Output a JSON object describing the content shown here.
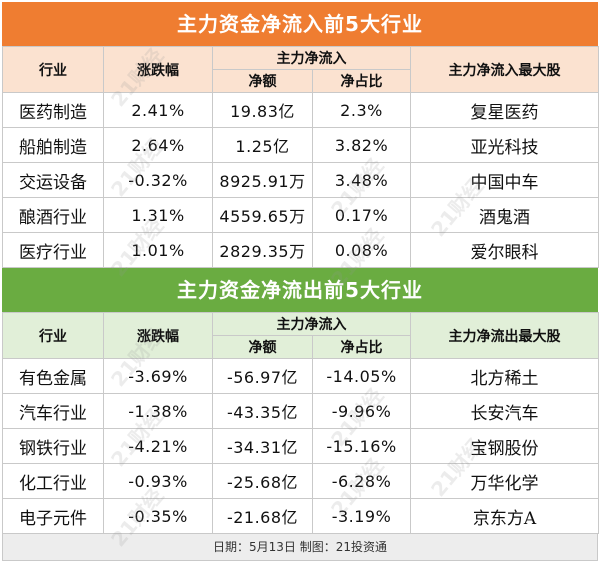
{
  "inflow": {
    "title": "主力资金净流入前5大行业",
    "headers": {
      "industry": "行业",
      "change": "涨跌幅",
      "main_net": "主力净流入",
      "net_amount": "净额",
      "net_ratio": "净占比",
      "top_stock": "主力净流入最大股"
    },
    "rows": [
      {
        "industry": "医药制造",
        "change": "2.41%",
        "amount": "19.83亿",
        "ratio": "2.3%",
        "stock": "复星医药"
      },
      {
        "industry": "船舶制造",
        "change": "2.64%",
        "amount": "1.25亿",
        "ratio": "3.82%",
        "stock": "亚光科技"
      },
      {
        "industry": "交运设备",
        "change": "-0.32%",
        "amount": "8925.91万",
        "ratio": "3.48%",
        "stock": "中国中车"
      },
      {
        "industry": "酿酒行业",
        "change": "1.31%",
        "amount": "4559.65万",
        "ratio": "0.17%",
        "stock": "酒鬼酒"
      },
      {
        "industry": "医疗行业",
        "change": "1.01%",
        "amount": "2829.35万",
        "ratio": "0.08%",
        "stock": "爱尔眼科"
      }
    ]
  },
  "outflow": {
    "title": "主力资金净流出前5大行业",
    "headers": {
      "industry": "行业",
      "change": "涨跌幅",
      "main_net": "主力净流入",
      "net_amount": "净额",
      "net_ratio": "净占比",
      "top_stock": "主力净流出最大股"
    },
    "rows": [
      {
        "industry": "有色金属",
        "change": "-3.69%",
        "amount": "-56.97亿",
        "ratio": "-14.05%",
        "stock": "北方稀土"
      },
      {
        "industry": "汽车行业",
        "change": "-1.38%",
        "amount": "-43.35亿",
        "ratio": "-9.96%",
        "stock": "长安汽车"
      },
      {
        "industry": "钢铁行业",
        "change": "-4.21%",
        "amount": "-34.31亿",
        "ratio": "-15.16%",
        "stock": "宝钢股份"
      },
      {
        "industry": "化工行业",
        "change": "-0.93%",
        "amount": "-25.68亿",
        "ratio": "-6.28%",
        "stock": "万华化学"
      },
      {
        "industry": "电子元件",
        "change": "-0.35%",
        "amount": "-21.68亿",
        "ratio": "-3.19%",
        "stock": "京东方A"
      }
    ]
  },
  "footer": "日期：5月13日 制图：21投资通",
  "watermark": "21财经"
}
